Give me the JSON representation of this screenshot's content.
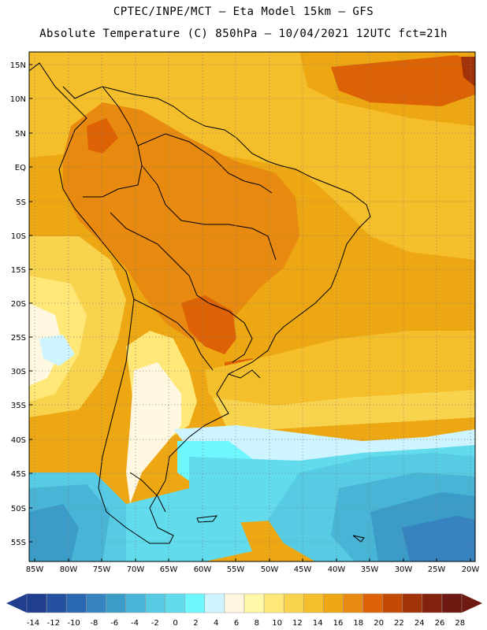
{
  "header": {
    "line1": "CPTEC/INPE/MCT –   Eta Model 15km – GFS",
    "line2": "Absolute Temperature (C) 850hPa – 10/04/2021 12UTC fct=21h"
  },
  "map": {
    "region": "South America",
    "lat_labels": [
      "15N",
      "10N",
      "5N",
      "EQ",
      "5S",
      "10S",
      "15S",
      "20S",
      "25S",
      "30S",
      "35S",
      "40S",
      "45S",
      "50S",
      "55S"
    ],
    "lon_labels": [
      "85W",
      "80W",
      "75W",
      "70W",
      "65W",
      "60W",
      "55W",
      "50W",
      "45W",
      "40W",
      "35W",
      "30W",
      "25W",
      "20W"
    ],
    "lat_range": [
      -58,
      16
    ],
    "lon_range": [
      -86,
      -20
    ]
  },
  "colorbar": {
    "ticks": [
      "-14",
      "-12",
      "-10",
      "-8",
      "-6",
      "-4",
      "-2",
      "0",
      "2",
      "4",
      "6",
      "8",
      "10",
      "12",
      "14",
      "16",
      "18",
      "20",
      "22",
      "24",
      "26",
      "28"
    ],
    "colors": [
      "#1f3e8e",
      "#2452a0",
      "#2a69b2",
      "#3683c0",
      "#3b9cc8",
      "#48b4d6",
      "#58cbe4",
      "#62dcec",
      "#6ff7ff",
      "#cdf4ff",
      "#fff7df",
      "#fff8a8",
      "#ffe878",
      "#f8d34e",
      "#f4bf2a",
      "#eca713",
      "#e88a0f",
      "#dd6205",
      "#c24a05",
      "#a23208",
      "#83230e",
      "#6e1a12"
    ]
  },
  "temperature_zones": [
    {
      "label": "22",
      "color": "#dd6205"
    },
    {
      "label": "20",
      "color": "#e88a0f"
    },
    {
      "label": "18",
      "color": "#eca713"
    },
    {
      "label": "16",
      "color": "#f4bf2a"
    },
    {
      "label": "14",
      "color": "#f8d34e"
    },
    {
      "label": "12",
      "color": "#ffe878"
    },
    {
      "label": "8",
      "color": "#fff7df"
    },
    {
      "label": "6",
      "color": "#cdf4ff"
    },
    {
      "label": "4",
      "color": "#6ff7ff"
    },
    {
      "label": "2",
      "color": "#62dcec"
    },
    {
      "label": "0",
      "color": "#58cbe4"
    },
    {
      "label": "-2",
      "color": "#48b4d6"
    },
    {
      "label": "-4",
      "color": "#3b9cc8"
    },
    {
      "label": "-6",
      "color": "#3683c0"
    }
  ]
}
